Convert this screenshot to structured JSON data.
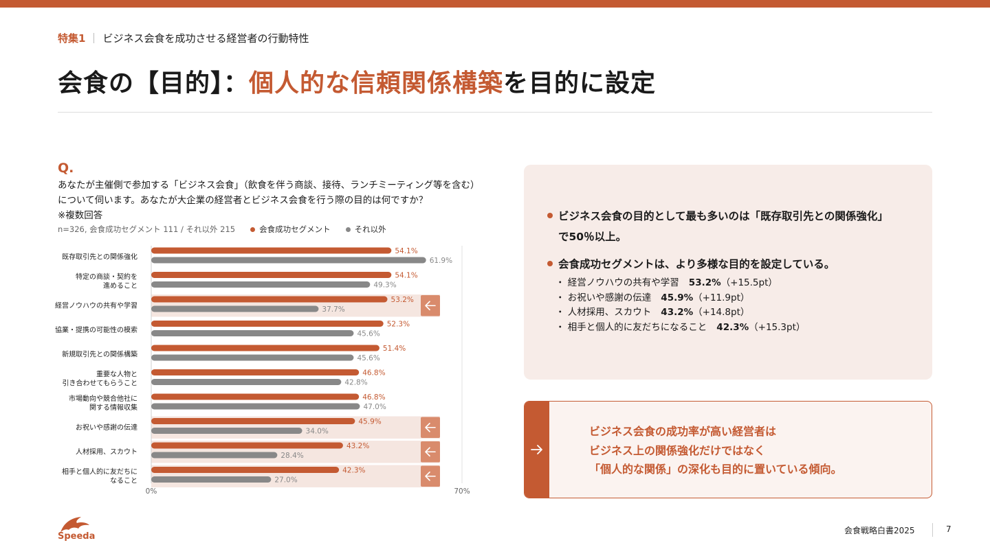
{
  "header": {
    "section_num": "特集1",
    "section_title": "ビジネス会食を成功させる経営者の行動特性",
    "title_prefix": "会食の【目的】：",
    "title_accent": "個人的な信頼関係構築",
    "title_suffix": "を目的に設定"
  },
  "question": {
    "mark": "Q.",
    "line1": "あなたが主催側で参加する「ビジネス会食」（飲食を伴う商談、接待、ランチミーティング等を含む）",
    "line2": "について伺います。あなたが大企業の経営者とビジネス会食を行う際の目的は何ですか？",
    "line3": "※複数回答"
  },
  "legend": {
    "sample": "n=326, 会食成功セグメント 111 / それ以外 215",
    "series1": "会食成功セグメント",
    "series2": "それ以外"
  },
  "colors": {
    "accent": "#c45a32",
    "gray": "#888888",
    "highlight_bg": "#f5e6e0",
    "arrow_box": "#d98b6c"
  },
  "chart_data": {
    "type": "bar",
    "orientation": "horizontal",
    "categories": [
      [
        "既存取引先との関係強化"
      ],
      [
        "特定の商談・契約を",
        "進めること"
      ],
      [
        "経営ノウハウの共有や学習"
      ],
      [
        "協業・提携の可能性の模索"
      ],
      [
        "新規取引先との関係構築"
      ],
      [
        "重要な人物と",
        "引き合わせてもらうこと"
      ],
      [
        "市場動向や競合他社に",
        "関する情報収集"
      ],
      [
        "お祝いや感謝の伝達"
      ],
      [
        "人材採用、スカウト"
      ],
      [
        "相手と個人的に友だちに",
        "なること"
      ]
    ],
    "series": [
      {
        "name": "会食成功セグメント",
        "values": [
          54.1,
          54.1,
          53.2,
          52.3,
          51.4,
          46.8,
          46.8,
          45.9,
          43.2,
          42.3
        ]
      },
      {
        "name": "それ以外",
        "values": [
          61.9,
          49.3,
          37.7,
          45.6,
          45.6,
          42.8,
          47.0,
          34.0,
          28.4,
          27.0
        ]
      }
    ],
    "highlighted": [
      2,
      7,
      8,
      9
    ],
    "xlim": [
      0,
      70
    ],
    "tick_labels": [
      "0%",
      "70%"
    ],
    "value_suffix": "%"
  },
  "summary": {
    "bullet1_line1": "ビジネス会食の目的として最も多いのは「既存取引先との関係強化」",
    "bullet1_line2": "で50％以上。",
    "bullet2": "会食成功セグメントは、より多様な目的を設定している。",
    "subs": [
      {
        "label": "・ 経営ノウハウの共有や学習",
        "value": "53.2%",
        "diff": "（+15.5pt）"
      },
      {
        "label": "・ お祝いや感謝の伝達",
        "value": "45.9%",
        "diff": "（+11.9pt）"
      },
      {
        "label": "・ 人材採用、スカウト",
        "value": "43.2%",
        "diff": "（+14.8pt）"
      },
      {
        "label": "・ 相手と個人的に友だちになること",
        "value": "42.3%",
        "diff": "（+15.3pt）"
      }
    ]
  },
  "conclusion": {
    "line1": "ビジネス会食の成功率が高い経営者は",
    "line2": "ビジネス上の関係強化だけではなく",
    "line3": "「個人的な関係」の深化も目的に置いている傾向。"
  },
  "footer": {
    "brand": "Speeda",
    "doc": "会食戦略白書2025",
    "page": "7"
  }
}
